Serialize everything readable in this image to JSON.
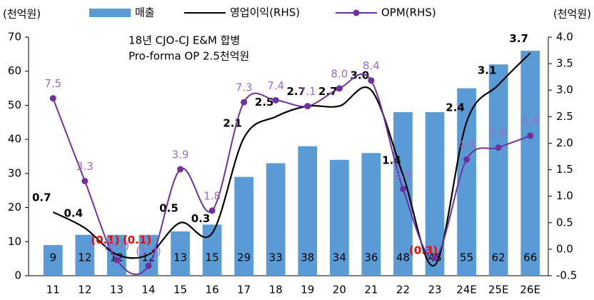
{
  "chart_data": {
    "type": "combo",
    "left_unit": "(천억원)",
    "right_unit": "(천억원)",
    "annotations": [
      "18년 CJO-CJ E&M 합병",
      "Pro-forma OP 2.5천억원"
    ],
    "categories": [
      "11",
      "12",
      "13",
      "14",
      "15",
      "16",
      "17",
      "18",
      "19",
      "20",
      "21",
      "22",
      "23",
      "24E",
      "25E",
      "26E"
    ],
    "ylim": [
      0,
      70
    ],
    "yticks": [
      0,
      10,
      20,
      30,
      40,
      50,
      60,
      70
    ],
    "y2lim": [
      -0.5,
      4.0
    ],
    "y2ticks": [
      -0.5,
      {
        "value": 0,
        "label": "0.0"
      },
      0.5,
      {
        "value": 1,
        "label": "1.0"
      },
      1.5,
      {
        "value": 2,
        "label": "2.0"
      },
      2.5,
      {
        "value": 3,
        "label": "3.0"
      },
      3.5,
      {
        "value": 4,
        "label": "4.0"
      }
    ],
    "y3lim": [
      -1.5,
      10.6
    ],
    "series": [
      {
        "name": "매출",
        "type": "bar",
        "color": "#5b9bd5",
        "values": [
          9,
          12,
          12,
          12,
          13,
          15,
          29,
          33,
          38,
          34,
          36,
          48,
          48,
          55,
          62,
          66
        ]
      },
      {
        "name": "영업이익(RHS)",
        "type": "line",
        "axis": "y2",
        "color": "#000000",
        "values": [
          0.7,
          0.4,
          -0.1,
          -0.1,
          0.5,
          0.3,
          2.1,
          2.5,
          2.7,
          2.7,
          3.0,
          1.4,
          -0.3,
          2.4,
          3.1,
          3.7
        ],
        "value_labels": [
          "0.7",
          "0.4",
          "(0.1)",
          "(0.1)",
          "0.5",
          "0.3",
          "2.1",
          "2.5",
          "2.7",
          "2.7",
          "3.0",
          "1.4",
          "(0.3)",
          "2.4",
          "3.1",
          "3.7"
        ]
      },
      {
        "name": "OPM(RHS)",
        "type": "line",
        "axis": "y3",
        "color": "#7030a0",
        "marker": true,
        "values": [
          7.5,
          3.3,
          -0.7,
          -1.0,
          3.9,
          1.8,
          7.3,
          7.4,
          7.1,
          8.0,
          8.4,
          2.9,
          -0.6,
          4.4,
          5.0,
          5.6
        ],
        "value_labels": [
          "7.5",
          "3.3",
          "(0.7)",
          "(1.0)",
          "3.9",
          "1.8",
          "7.3",
          "7.4",
          "7.1",
          "8.0",
          "8.4",
          "2.9",
          null,
          "4.4",
          "5.0",
          "5.6"
        ]
      }
    ]
  }
}
